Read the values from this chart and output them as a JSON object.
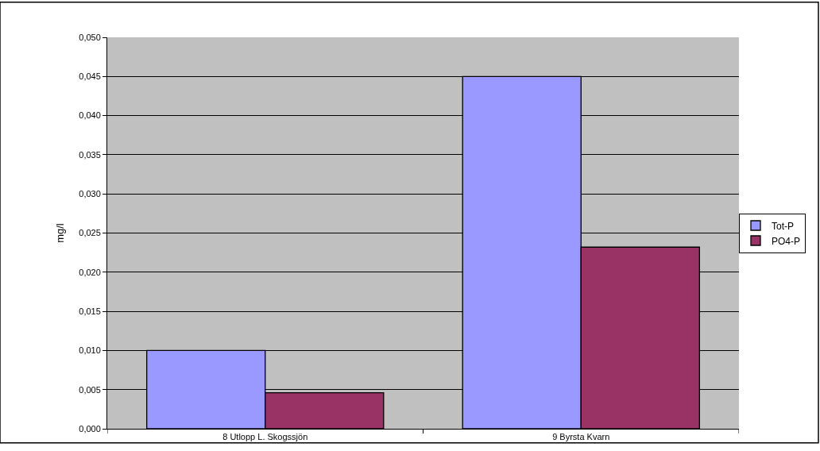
{
  "chart_data": {
    "type": "bar",
    "ylabel": "mg/l",
    "categories": [
      "8 Utlopp L. Skogssjön",
      "9 Byrsta Kvarn"
    ],
    "series": [
      {
        "name": "Tot-P",
        "color": "#9999ff",
        "values": [
          0.01,
          0.045
        ]
      },
      {
        "name": "PO4-P",
        "color": "#993366",
        "values": [
          0.0046,
          0.0232
        ]
      }
    ],
    "ylim": [
      0,
      0.05
    ],
    "yticks": [
      {
        "value": 0,
        "label": "0,000"
      },
      {
        "value": 0.005,
        "label": "0,005"
      },
      {
        "value": 0.01,
        "label": "0,010"
      },
      {
        "value": 0.015,
        "label": "0,015"
      },
      {
        "value": 0.02,
        "label": "0,020"
      },
      {
        "value": 0.025,
        "label": "0,025"
      },
      {
        "value": 0.03,
        "label": "0,030"
      },
      {
        "value": 0.035,
        "label": "0,035"
      },
      {
        "value": 0.04,
        "label": "0,040"
      },
      {
        "value": 0.045,
        "label": "0,045"
      },
      {
        "value": 0.05,
        "label": "0,050"
      }
    ],
    "grid": "y",
    "legend": "right"
  }
}
